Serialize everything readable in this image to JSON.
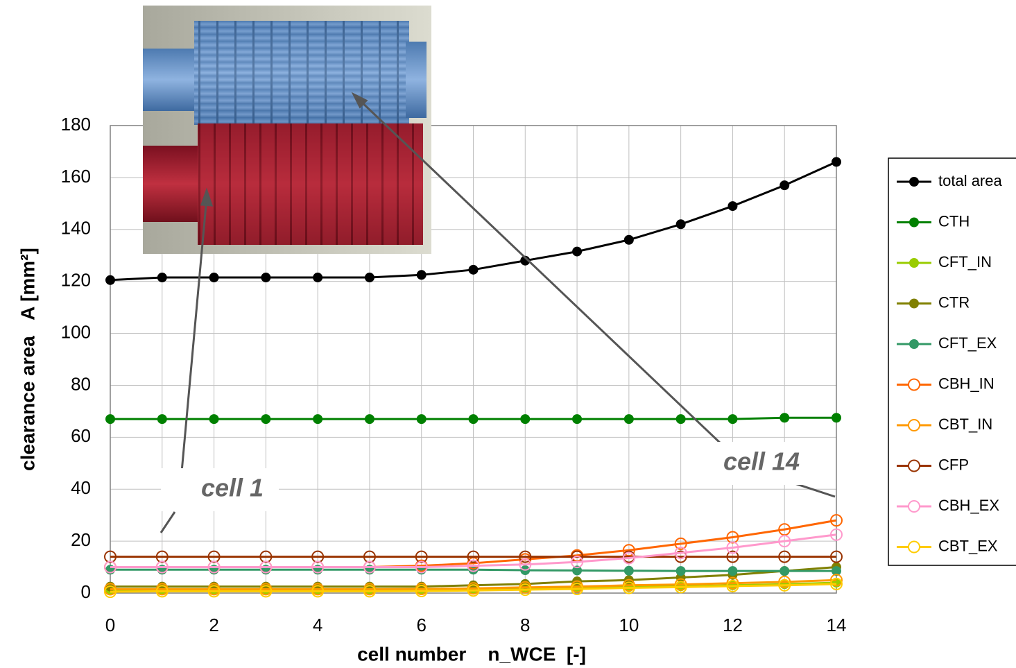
{
  "chart_data": {
    "type": "line",
    "xlabel": "cell number    n_WCE  [-]",
    "ylabel": "clearance area   A [mm²]",
    "x": [
      0,
      1,
      2,
      3,
      4,
      5,
      6,
      7,
      8,
      9,
      10,
      11,
      12,
      13,
      14
    ],
    "xlim": [
      0,
      14
    ],
    "xticks": [
      0,
      2,
      4,
      6,
      8,
      10,
      12,
      14
    ],
    "ylim": [
      0,
      180
    ],
    "yticks": [
      0,
      20,
      40,
      60,
      80,
      100,
      120,
      140,
      160,
      180
    ],
    "grid": true,
    "legend": "right",
    "annotations": [
      "cell 1",
      "cell 14"
    ],
    "series": [
      {
        "name": "total area",
        "color": "#000000",
        "marker": "filled",
        "values": [
          120.5,
          121.5,
          121.5,
          121.5,
          121.5,
          121.5,
          122.5,
          124.5,
          128,
          131.5,
          136,
          142,
          149,
          157,
          166
        ]
      },
      {
        "name": "CTH",
        "color": "#008000",
        "marker": "filled",
        "values": [
          67,
          67,
          67,
          67,
          67,
          67,
          67,
          67,
          67,
          67,
          67,
          67,
          67,
          67.5,
          67.5
        ]
      },
      {
        "name": "CFT_IN",
        "color": "#99cc00",
        "marker": "filled",
        "values": [
          1,
          1.2,
          1.2,
          1.2,
          1.2,
          1.2,
          1.3,
          1.5,
          1.8,
          2,
          2.3,
          2.6,
          3,
          3.4,
          4
        ]
      },
      {
        "name": "CTR",
        "color": "#808000",
        "marker": "filled",
        "values": [
          2.5,
          2.5,
          2.5,
          2.5,
          2.5,
          2.5,
          2.5,
          3,
          3.5,
          4.5,
          5,
          6,
          7,
          8.5,
          10
        ]
      },
      {
        "name": "CFT_EX",
        "color": "#339966",
        "marker": "filled",
        "values": [
          9,
          9,
          9,
          9,
          9,
          9,
          9,
          9,
          8.8,
          8.7,
          8.6,
          8.5,
          8.5,
          8.5,
          8.5
        ]
      },
      {
        "name": "CBH_IN",
        "color": "#ff6600",
        "marker": "open",
        "values": [
          10,
          10,
          10,
          10,
          10,
          10,
          10.5,
          11.5,
          13,
          14.5,
          16.5,
          19,
          21.5,
          24.5,
          28
        ]
      },
      {
        "name": "CBT_IN",
        "color": "#ff9900",
        "marker": "open",
        "values": [
          1.5,
          1.5,
          1.5,
          1.5,
          1.5,
          1.5,
          1.6,
          1.8,
          2.2,
          2.5,
          3,
          3.3,
          3.8,
          4.3,
          5
        ]
      },
      {
        "name": "CFP",
        "color": "#993300",
        "marker": "open",
        "values": [
          14,
          14,
          14,
          14,
          14,
          14,
          14,
          14,
          14,
          14,
          14,
          14,
          14,
          14,
          14
        ]
      },
      {
        "name": "CBH_EX",
        "color": "#ff99cc",
        "marker": "open",
        "values": [
          10,
          10,
          10,
          10,
          10,
          10,
          10,
          10.5,
          11,
          12,
          13.5,
          15.5,
          17.5,
          20,
          22.5
        ]
      },
      {
        "name": "CBT_EX",
        "color": "#ffcc00",
        "marker": "open",
        "values": [
          0.5,
          0.7,
          0.7,
          0.7,
          0.7,
          0.7,
          0.8,
          1,
          1.3,
          1.6,
          2,
          2.3,
          2.7,
          3,
          3.5
        ]
      }
    ]
  }
}
